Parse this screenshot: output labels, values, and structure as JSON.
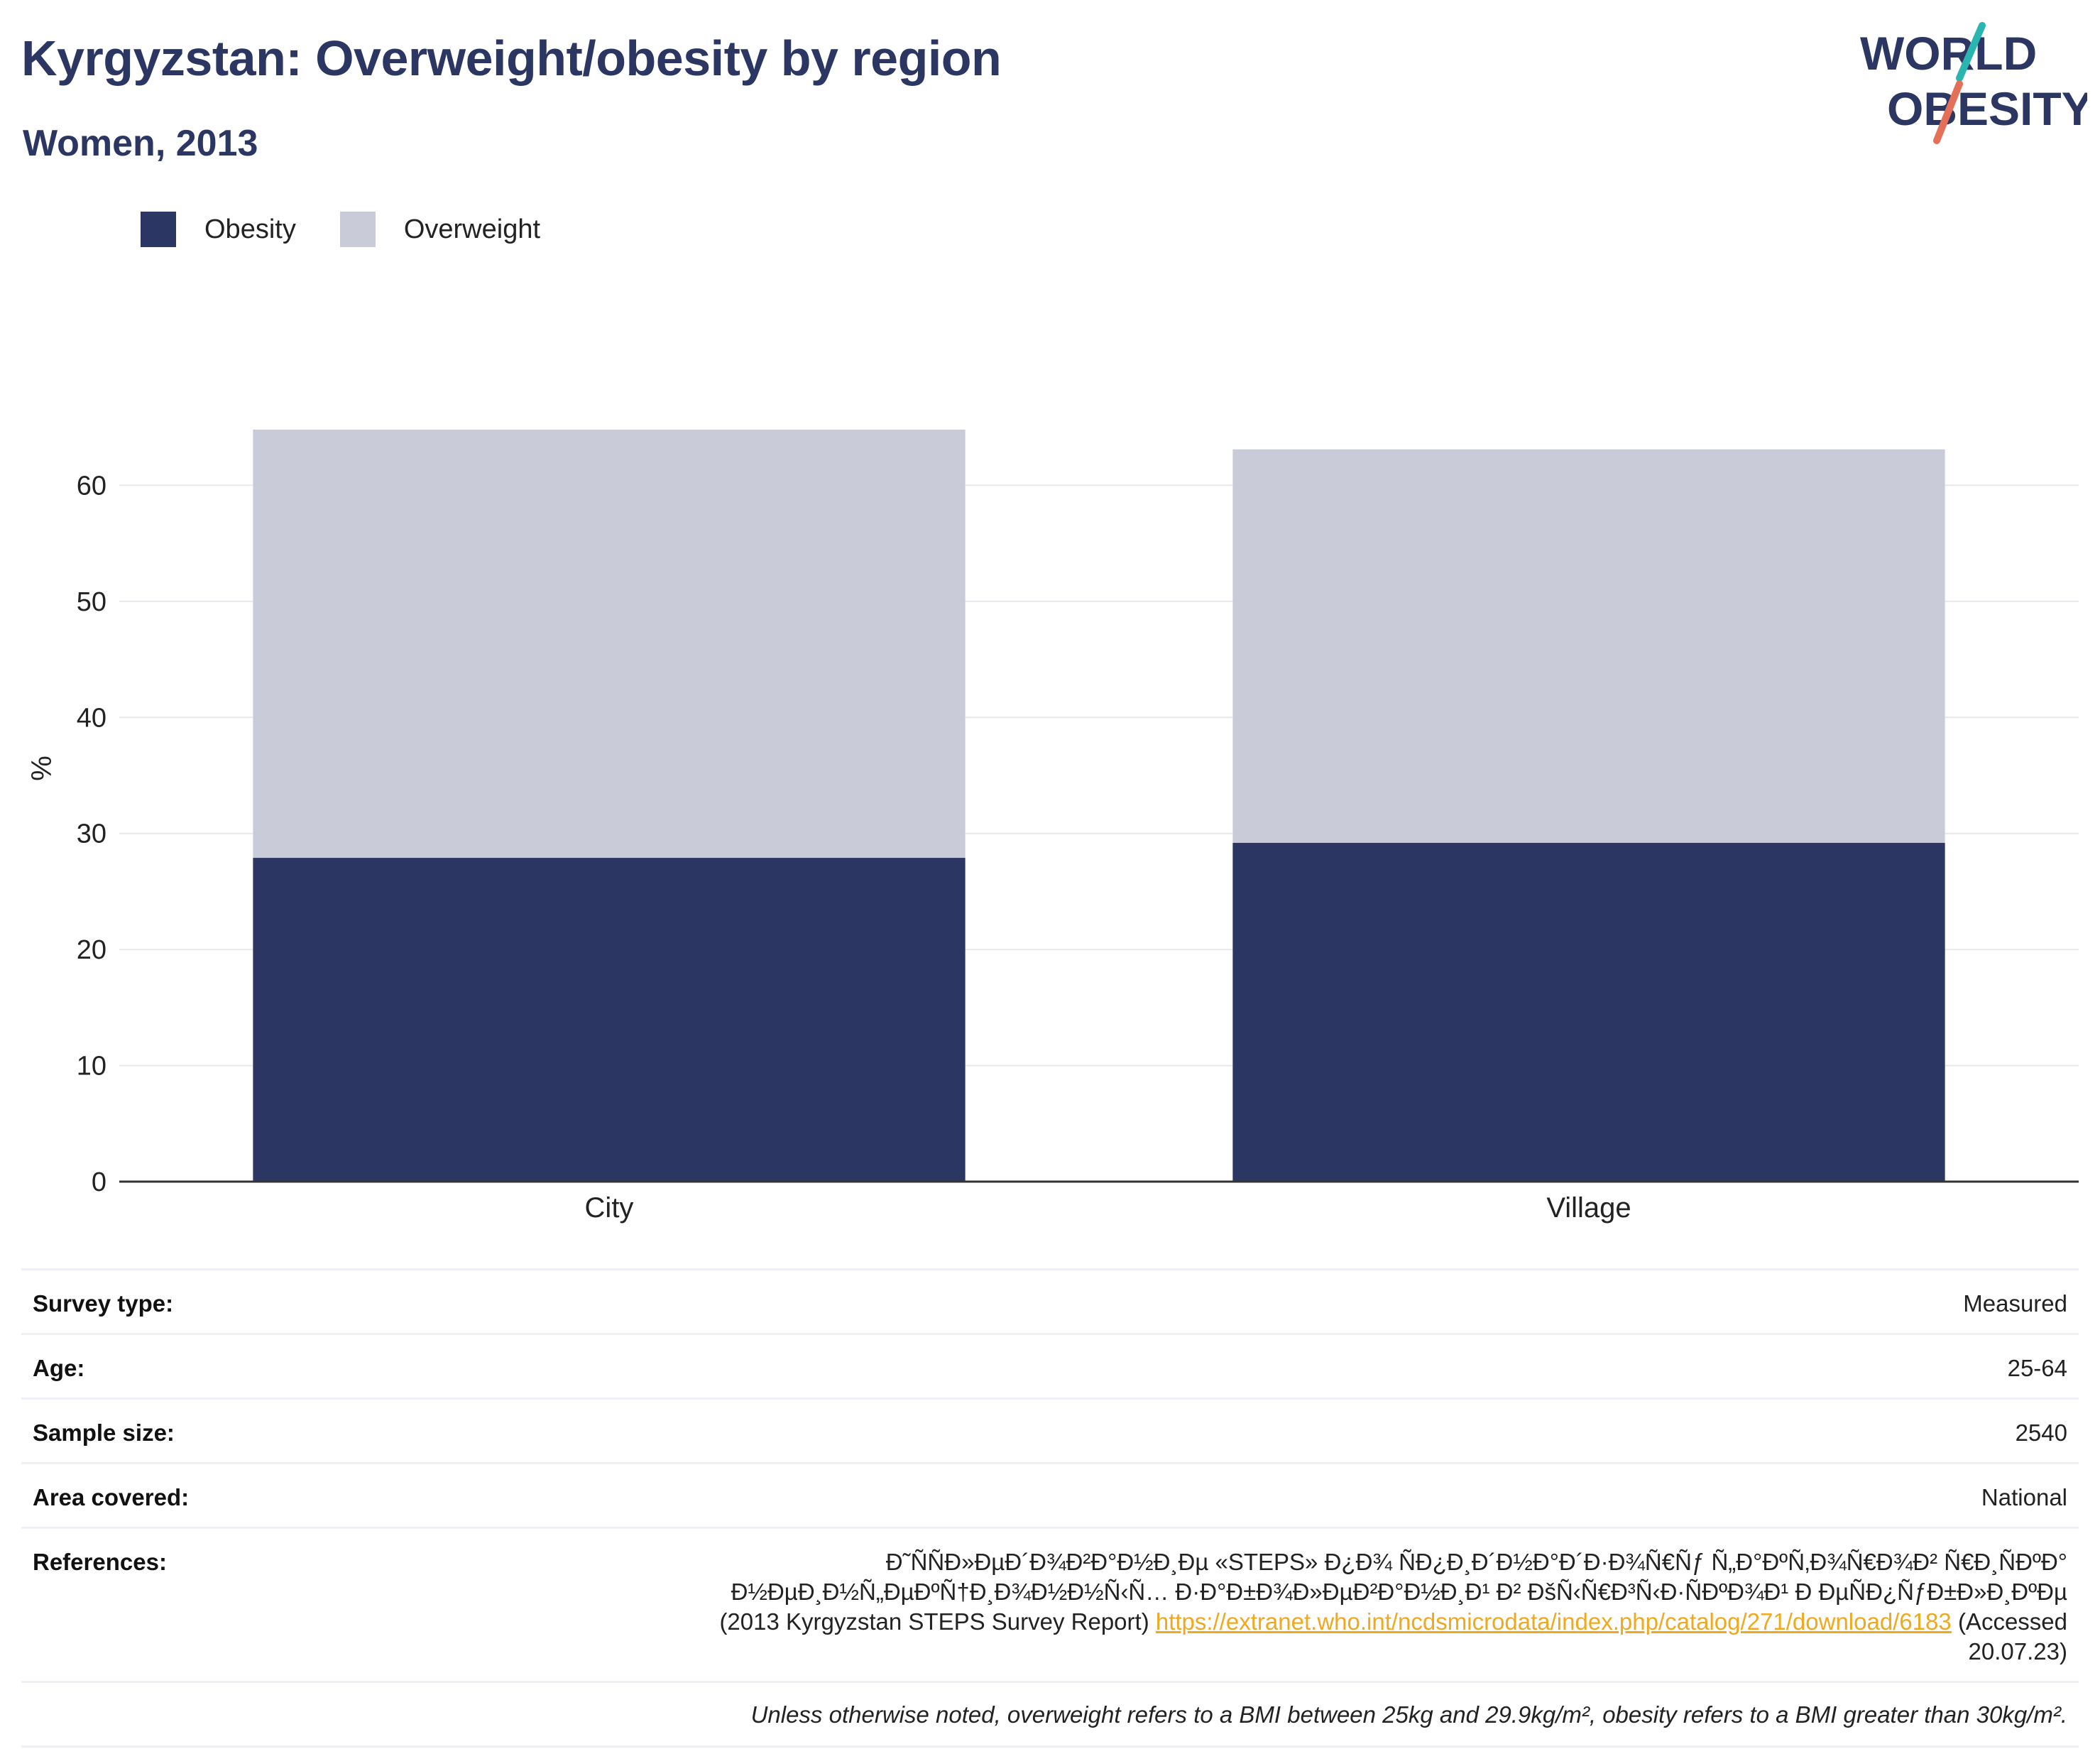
{
  "header": {
    "title": "Kyrgyzstan: Overweight/obesity by region",
    "subtitle": "Women, 2013"
  },
  "logo": {
    "line1": "WORLD",
    "line2": "OBESITY",
    "icon": "world-obesity-logo"
  },
  "colors": {
    "obesity": "#2b3762",
    "overweight": "#c9ccd8",
    "accent_teal": "#2bb5b0",
    "accent_coral": "#e5705a",
    "link": "#f0a91e"
  },
  "chart_data": {
    "type": "bar",
    "stacked": true,
    "categories": [
      "City",
      "Village"
    ],
    "series": [
      {
        "name": "Obesity",
        "values": [
          27.9,
          29.2
        ]
      },
      {
        "name": "Overweight",
        "values": [
          36.9,
          33.9
        ]
      }
    ],
    "xlabel": "",
    "ylabel": "%",
    "ylim": [
      0,
      70
    ],
    "yticks": [
      0,
      10,
      20,
      30,
      40,
      50,
      60
    ],
    "grid": true,
    "legend_position": "top-left"
  },
  "meta": {
    "survey_type": {
      "label": "Survey type:",
      "value": "Measured"
    },
    "age": {
      "label": "Age:",
      "value": "25-64"
    },
    "sample_size": {
      "label": "Sample size:",
      "value": "2540"
    },
    "area": {
      "label": "Area covered:",
      "value": "National"
    },
    "references": {
      "label": "References:",
      "text_line1": "Ð˜ÑÑÐ»ÐµÐ´Ð¾Ð²Ð°Ð½Ð¸Ðµ «STEPS» Ð¿Ð¾ ÑÐ¿Ð¸Ð´Ð½Ð°Ð´Ð·Ð¾Ñ€Ñƒ Ñ„Ð°ÐºÑ‚Ð¾Ñ€Ð¾Ð² Ñ€Ð¸ÑÐºÐ°",
      "text_line2": "Ð½ÐµÐ¸Ð½Ñ„ÐµÐºÑ†Ð¸Ð¾Ð½Ð½Ñ‹Ñ… Ð·Ð°Ð±Ð¾Ð»ÐµÐ²Ð°Ð½Ð¸Ð¹ Ð² ÐšÑ‹Ñ€Ð³Ñ‹Ð·ÑÐºÐ¾Ð¹ Ð ÐµÑÐ¿ÑƒÐ±Ð»Ð¸ÐºÐµ",
      "text_line3": "(2013 Kyrgyzstan STEPS Survey Report)",
      "link": "https://extranet.who.int/ncdsmicrodata/index.php/catalog/271/download/6183",
      "accessed": "(Accessed 20.07.23)"
    },
    "note": "Unless otherwise noted, overweight refers to a BMI between 25kg and 29.9kg/m², obesity refers to a BMI greater than 30kg/m²."
  }
}
